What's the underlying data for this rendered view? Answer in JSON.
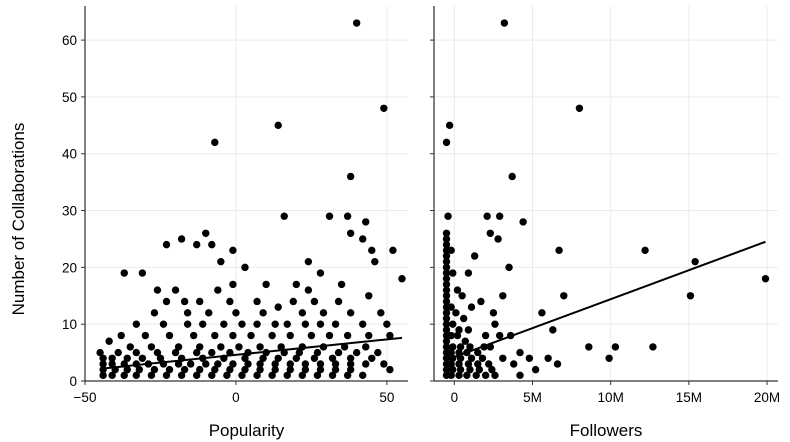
{
  "chart_data": [
    {
      "type": "scatter",
      "xlabel": "Popularity",
      "ylabel": "Number of Collaborations",
      "xlim": [
        -50,
        57
      ],
      "ylim": [
        0,
        66
      ],
      "xticks": [
        -50,
        0,
        50
      ],
      "xtick_labels": [
        "−50",
        "0",
        "50"
      ],
      "yticks": [
        0,
        10,
        20,
        30,
        40,
        50,
        60
      ],
      "ytick_labels": [
        "0",
        "10",
        "20",
        "30",
        "40",
        "50",
        "60"
      ],
      "grid": true,
      "legend": "none",
      "points": [
        [
          40,
          63
        ],
        [
          49,
          48
        ],
        [
          14,
          45
        ],
        [
          -7,
          42
        ],
        [
          38,
          36
        ],
        [
          16,
          29
        ],
        [
          31,
          29
        ],
        [
          37,
          29
        ],
        [
          43,
          28
        ],
        [
          38,
          26
        ],
        [
          42,
          25
        ],
        [
          -10,
          26
        ],
        [
          -1,
          23
        ],
        [
          45,
          23
        ],
        [
          52,
          23
        ],
        [
          -18,
          25
        ],
        [
          -23,
          24
        ],
        [
          -13,
          24
        ],
        [
          -8,
          24
        ],
        [
          -37,
          19
        ],
        [
          -31,
          19
        ],
        [
          -5,
          21
        ],
        [
          3,
          20
        ],
        [
          24,
          21
        ],
        [
          28,
          19
        ],
        [
          46,
          21
        ],
        [
          55,
          18
        ],
        [
          -26,
          16
        ],
        [
          -20,
          16
        ],
        [
          -6,
          16
        ],
        [
          -1,
          17
        ],
        [
          10,
          17
        ],
        [
          20,
          17
        ],
        [
          24,
          16
        ],
        [
          35,
          17
        ],
        [
          -23,
          14
        ],
        [
          -17,
          14
        ],
        [
          -12,
          14
        ],
        [
          -2,
          14
        ],
        [
          7,
          14
        ],
        [
          19,
          14
        ],
        [
          26,
          14
        ],
        [
          34,
          14
        ],
        [
          44,
          15
        ],
        [
          -27,
          12
        ],
        [
          -16,
          12
        ],
        [
          -9,
          12
        ],
        [
          0,
          12
        ],
        [
          9,
          12
        ],
        [
          14,
          13
        ],
        [
          22,
          12
        ],
        [
          29,
          12
        ],
        [
          38,
          12
        ],
        [
          48,
          12
        ],
        [
          -33,
          10
        ],
        [
          -24,
          10
        ],
        [
          -16,
          10
        ],
        [
          -11,
          10
        ],
        [
          -4,
          10
        ],
        [
          2,
          10
        ],
        [
          7,
          10
        ],
        [
          13,
          10
        ],
        [
          17,
          10
        ],
        [
          23,
          10
        ],
        [
          28,
          10
        ],
        [
          33,
          10
        ],
        [
          42,
          10
        ],
        [
          50,
          10
        ],
        [
          -38,
          8
        ],
        [
          -30,
          8
        ],
        [
          -22,
          8
        ],
        [
          -14,
          8
        ],
        [
          -7,
          8
        ],
        [
          -1,
          8
        ],
        [
          5,
          8
        ],
        [
          12,
          8
        ],
        [
          18,
          8
        ],
        [
          25,
          8
        ],
        [
          31,
          8
        ],
        [
          37,
          8
        ],
        [
          44,
          8
        ],
        [
          51,
          8
        ],
        [
          -42,
          7
        ],
        [
          -35,
          6
        ],
        [
          -28,
          6
        ],
        [
          -19,
          6
        ],
        [
          -12,
          6
        ],
        [
          -5,
          6
        ],
        [
          1,
          6
        ],
        [
          8,
          6
        ],
        [
          15,
          6
        ],
        [
          22,
          6
        ],
        [
          29,
          6
        ],
        [
          36,
          6
        ],
        [
          43,
          6
        ],
        [
          -45,
          5
        ],
        [
          -39,
          5
        ],
        [
          -33,
          5
        ],
        [
          -26,
          5
        ],
        [
          -20,
          5
        ],
        [
          -13,
          5
        ],
        [
          -8,
          5
        ],
        [
          -2,
          5
        ],
        [
          4,
          5
        ],
        [
          10,
          5
        ],
        [
          16,
          5
        ],
        [
          21,
          5
        ],
        [
          27,
          5
        ],
        [
          34,
          5
        ],
        [
          40,
          5
        ],
        [
          47,
          5
        ],
        [
          -44,
          4
        ],
        [
          -41,
          4
        ],
        [
          -36,
          4
        ],
        [
          -31,
          4
        ],
        [
          -25,
          4
        ],
        [
          -18,
          4
        ],
        [
          -11,
          4
        ],
        [
          -4,
          4
        ],
        [
          3,
          4
        ],
        [
          9,
          4
        ],
        [
          14,
          4
        ],
        [
          20,
          4
        ],
        [
          26,
          4
        ],
        [
          32,
          4
        ],
        [
          38,
          4
        ],
        [
          45,
          4
        ],
        [
          -44,
          3
        ],
        [
          -41,
          3
        ],
        [
          -37,
          3
        ],
        [
          -33,
          3
        ],
        [
          -29,
          3
        ],
        [
          -24,
          3
        ],
        [
          -19,
          3
        ],
        [
          -15,
          3
        ],
        [
          -10,
          3
        ],
        [
          -6,
          3
        ],
        [
          -1,
          3
        ],
        [
          4,
          3
        ],
        [
          8,
          3
        ],
        [
          13,
          3
        ],
        [
          18,
          3
        ],
        [
          23,
          3
        ],
        [
          28,
          3
        ],
        [
          33,
          3
        ],
        [
          38,
          3
        ],
        [
          43,
          3
        ],
        [
          49,
          3
        ],
        [
          -44,
          2
        ],
        [
          -40,
          2
        ],
        [
          -36,
          2
        ],
        [
          -32,
          2
        ],
        [
          -27,
          2
        ],
        [
          -22,
          2
        ],
        [
          -17,
          2
        ],
        [
          -12,
          2
        ],
        [
          -7,
          2
        ],
        [
          -2,
          2
        ],
        [
          3,
          2
        ],
        [
          8,
          2
        ],
        [
          13,
          2
        ],
        [
          18,
          2
        ],
        [
          23,
          2
        ],
        [
          28,
          2
        ],
        [
          33,
          2
        ],
        [
          38,
          2
        ],
        [
          51,
          2
        ],
        [
          -44,
          1
        ],
        [
          -41,
          1
        ],
        [
          -37,
          1
        ],
        [
          -33,
          1
        ],
        [
          -28,
          1
        ],
        [
          -23,
          1
        ],
        [
          -18,
          1
        ],
        [
          -13,
          1
        ],
        [
          -8,
          1
        ],
        [
          -3,
          1
        ],
        [
          2,
          1
        ],
        [
          7,
          1
        ],
        [
          12,
          1
        ],
        [
          17,
          1
        ],
        [
          22,
          1
        ],
        [
          27,
          1
        ],
        [
          32,
          1
        ],
        [
          37,
          1
        ],
        [
          42,
          1
        ]
      ],
      "trend_line": [
        [
          -44,
          2.2
        ],
        [
          55,
          7.6
        ]
      ]
    },
    {
      "type": "scatter",
      "xlabel": "Followers",
      "ylabel": "",
      "xlim": [
        -1300000,
        20700000
      ],
      "ylim": [
        0,
        66
      ],
      "xticks": [
        0,
        5000000,
        10000000,
        15000000,
        20000000
      ],
      "xtick_labels": [
        "0",
        "5M",
        "10M",
        "15M",
        "20M"
      ],
      "yticks": [
        0,
        10,
        20,
        30,
        40,
        50,
        60
      ],
      "ytick_labels": [
        "",
        "",
        "",
        "",
        "",
        "",
        ""
      ],
      "grid": true,
      "legend": "none",
      "points": [
        [
          3200000,
          63
        ],
        [
          8000000,
          48
        ],
        [
          -300000,
          45
        ],
        [
          -500000,
          42
        ],
        [
          3700000,
          36
        ],
        [
          -400000,
          29
        ],
        [
          2100000,
          29
        ],
        [
          2900000,
          29
        ],
        [
          4400000,
          28
        ],
        [
          2800000,
          25
        ],
        [
          2300000,
          26
        ],
        [
          6700000,
          23
        ],
        [
          12200000,
          23
        ],
        [
          15400000,
          21
        ],
        [
          19900000,
          18
        ],
        [
          15100000,
          15
        ],
        [
          -500000,
          26
        ],
        [
          -500000,
          25
        ],
        [
          -500000,
          24
        ],
        [
          -500000,
          23
        ],
        [
          -500000,
          22
        ],
        [
          -500000,
          21
        ],
        [
          -500000,
          20
        ],
        [
          -500000,
          19
        ],
        [
          -500000,
          18
        ],
        [
          -500000,
          17
        ],
        [
          -500000,
          16
        ],
        [
          -500000,
          15
        ],
        [
          -500000,
          14
        ],
        [
          -500000,
          13
        ],
        [
          -500000,
          12
        ],
        [
          -500000,
          11
        ],
        [
          -500000,
          10
        ],
        [
          -500000,
          9
        ],
        [
          -500000,
          8
        ],
        [
          -500000,
          7
        ],
        [
          -500000,
          6
        ],
        [
          -500000,
          5
        ],
        [
          -500000,
          4
        ],
        [
          -500000,
          3
        ],
        [
          -500000,
          2
        ],
        [
          -500000,
          1
        ],
        [
          -200000,
          23
        ],
        [
          -100000,
          19
        ],
        [
          200000,
          16
        ],
        [
          500000,
          15
        ],
        [
          -200000,
          13
        ],
        [
          100000,
          12
        ],
        [
          600000,
          11
        ],
        [
          -100000,
          10
        ],
        [
          300000,
          9
        ],
        [
          900000,
          9
        ],
        [
          -200000,
          8
        ],
        [
          200000,
          8
        ],
        [
          700000,
          7
        ],
        [
          -100000,
          6
        ],
        [
          400000,
          6
        ],
        [
          1000000,
          6
        ],
        [
          -200000,
          5
        ],
        [
          300000,
          5
        ],
        [
          800000,
          5
        ],
        [
          1500000,
          5
        ],
        [
          -100000,
          4
        ],
        [
          400000,
          4
        ],
        [
          1100000,
          4
        ],
        [
          1800000,
          4
        ],
        [
          -200000,
          3
        ],
        [
          300000,
          3
        ],
        [
          900000,
          3
        ],
        [
          1500000,
          3
        ],
        [
          2200000,
          3
        ],
        [
          -100000,
          2
        ],
        [
          400000,
          2
        ],
        [
          1000000,
          2
        ],
        [
          1600000,
          2
        ],
        [
          2400000,
          2
        ],
        [
          -200000,
          1
        ],
        [
          300000,
          1
        ],
        [
          800000,
          1
        ],
        [
          1400000,
          1
        ],
        [
          2000000,
          1
        ],
        [
          2600000,
          1
        ],
        [
          1100000,
          13
        ],
        [
          1700000,
          14
        ],
        [
          2000000,
          8
        ],
        [
          2600000,
          10
        ],
        [
          3100000,
          15
        ],
        [
          3500000,
          20
        ],
        [
          2500000,
          12
        ],
        [
          2900000,
          8
        ],
        [
          3600000,
          8
        ],
        [
          4200000,
          5
        ],
        [
          4800000,
          4
        ],
        [
          5200000,
          2
        ],
        [
          5600000,
          12
        ],
        [
          6000000,
          4
        ],
        [
          6300000,
          9
        ],
        [
          7000000,
          15
        ],
        [
          6600000,
          3
        ],
        [
          8600000,
          6
        ],
        [
          9900000,
          4
        ],
        [
          10300000,
          6
        ],
        [
          12700000,
          6
        ],
        [
          1300000,
          22
        ],
        [
          900000,
          19
        ],
        [
          1900000,
          6
        ],
        [
          2300000,
          6
        ],
        [
          3100000,
          4
        ],
        [
          3800000,
          3
        ],
        [
          4200000,
          1
        ]
      ],
      "trend_line": [
        [
          -300000,
          3.9
        ],
        [
          19900000,
          24.5
        ]
      ]
    }
  ]
}
